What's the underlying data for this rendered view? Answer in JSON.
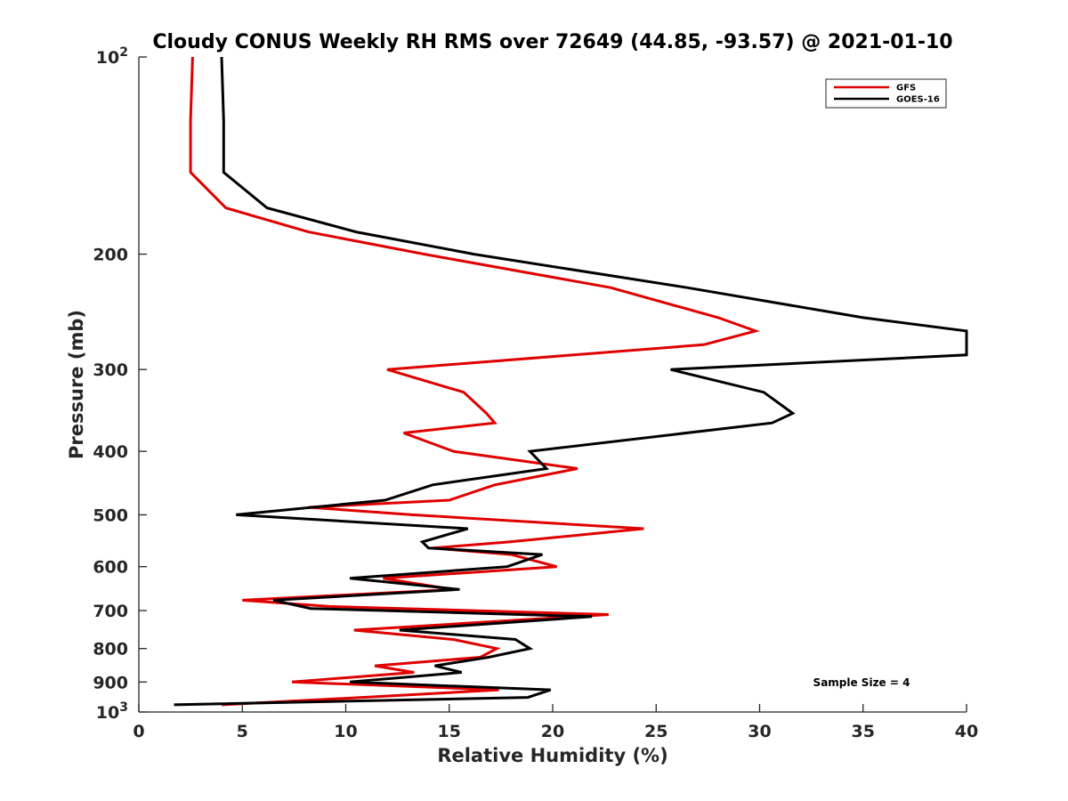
{
  "chart_data": {
    "type": "line",
    "title": "Cloudy CONUS Weekly RH RMS over 72649 (44.85, -93.57) @ 2021-01-10",
    "xlabel": "Relative Humidity (%)",
    "ylabel": "Pressure (mb)",
    "xlim": [
      0,
      40
    ],
    "ylim": [
      1000,
      100
    ],
    "yscale": "log",
    "y_reversed": true,
    "grid": false,
    "legend_position": "top-right",
    "x_ticks": [
      "0",
      "5",
      "10",
      "15",
      "20",
      "25",
      "30",
      "35",
      "40"
    ],
    "y_ticks": [
      {
        "value": 100,
        "label": "10",
        "sup": "2"
      },
      {
        "value": 200,
        "label": "200",
        "sup": ""
      },
      {
        "value": 300,
        "label": "300",
        "sup": ""
      },
      {
        "value": 400,
        "label": "400",
        "sup": ""
      },
      {
        "value": 500,
        "label": "500",
        "sup": ""
      },
      {
        "value": 600,
        "label": "600",
        "sup": ""
      },
      {
        "value": 700,
        "label": "700",
        "sup": ""
      },
      {
        "value": 800,
        "label": "800",
        "sup": ""
      },
      {
        "value": 900,
        "label": "900",
        "sup": ""
      },
      {
        "value": 1000,
        "label": "10",
        "sup": "3"
      }
    ],
    "annotation": "Sample Size = 4",
    "series": [
      {
        "name": "GFS",
        "color": "#e00000",
        "points": [
          [
            2.6,
            100
          ],
          [
            2.5,
            125
          ],
          [
            2.5,
            150
          ],
          [
            4.2,
            170
          ],
          [
            8.2,
            185
          ],
          [
            13.8,
            200
          ],
          [
            22.8,
            225
          ],
          [
            28.0,
            250
          ],
          [
            29.8,
            262
          ],
          [
            27.3,
            275
          ],
          [
            12.0,
            300
          ],
          [
            15.7,
            325
          ],
          [
            16.8,
            350
          ],
          [
            17.2,
            362
          ],
          [
            12.8,
            375
          ],
          [
            15.2,
            400
          ],
          [
            21.2,
            425
          ],
          [
            17.2,
            450
          ],
          [
            15.0,
            475
          ],
          [
            8.2,
            487
          ],
          [
            13.2,
            500
          ],
          [
            24.4,
            525
          ],
          [
            17.9,
            550
          ],
          [
            14.2,
            562
          ],
          [
            18.0,
            575
          ],
          [
            20.2,
            600
          ],
          [
            11.8,
            625
          ],
          [
            15.2,
            650
          ],
          [
            5.0,
            675
          ],
          [
            9.2,
            690
          ],
          [
            22.7,
            710
          ],
          [
            10.4,
            750
          ],
          [
            15.2,
            775
          ],
          [
            17.3,
            800
          ],
          [
            16.5,
            825
          ],
          [
            11.4,
            850
          ],
          [
            13.3,
            870
          ],
          [
            7.4,
            900
          ],
          [
            17.4,
            925
          ],
          [
            10.8,
            950
          ],
          [
            4.0,
            975
          ]
        ]
      },
      {
        "name": "GOES-16",
        "color": "#000000",
        "points": [
          [
            4.0,
            100
          ],
          [
            4.1,
            125
          ],
          [
            4.1,
            150
          ],
          [
            6.2,
            170
          ],
          [
            10.5,
            185
          ],
          [
            16.2,
            200
          ],
          [
            26.5,
            225
          ],
          [
            35.0,
            250
          ],
          [
            40.0,
            262
          ],
          [
            40.0,
            285
          ],
          [
            25.7,
            300
          ],
          [
            30.2,
            325
          ],
          [
            31.6,
            350
          ],
          [
            30.6,
            362
          ],
          [
            18.9,
            400
          ],
          [
            19.7,
            425
          ],
          [
            14.2,
            450
          ],
          [
            11.9,
            475
          ],
          [
            4.7,
            500
          ],
          [
            15.9,
            525
          ],
          [
            13.7,
            550
          ],
          [
            14.0,
            562
          ],
          [
            19.5,
            575
          ],
          [
            17.8,
            600
          ],
          [
            10.2,
            625
          ],
          [
            15.5,
            650
          ],
          [
            6.5,
            675
          ],
          [
            8.3,
            695
          ],
          [
            21.9,
            715
          ],
          [
            12.6,
            750
          ],
          [
            18.2,
            775
          ],
          [
            18.9,
            800
          ],
          [
            16.9,
            825
          ],
          [
            14.3,
            850
          ],
          [
            15.6,
            870
          ],
          [
            10.2,
            900
          ],
          [
            19.9,
            925
          ],
          [
            18.8,
            950
          ],
          [
            1.7,
            975
          ]
        ]
      }
    ]
  }
}
